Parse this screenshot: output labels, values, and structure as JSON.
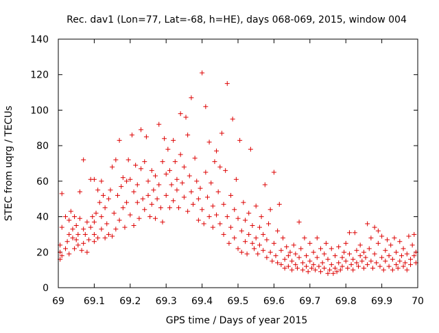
{
  "chart_data": {
    "type": "scatter",
    "title": "Rec. dav1 (Lon=77, Lat=-68, h=HE), days 068-069, 2015, window 004",
    "xlabel": "GPS time / Days of year 2015",
    "ylabel": "STEC from uqrg / TECUs",
    "xlim": [
      69,
      70
    ],
    "ylim": [
      0,
      140
    ],
    "xticks": [
      "69",
      "69.1",
      "69.2",
      "69.3",
      "69.4",
      "69.5",
      "69.6",
      "69.7",
      "69.8",
      "69.9",
      "70"
    ],
    "yticks": [
      "0",
      "20",
      "40",
      "60",
      "80",
      "100",
      "120",
      "140"
    ],
    "grid": false,
    "legend": "none",
    "marker": "+",
    "color": "#dd0000",
    "series": [
      {
        "points": [
          [
            69.005,
            16
          ],
          [
            69.005,
            20
          ],
          [
            69.005,
            24
          ],
          [
            69.01,
            18
          ],
          [
            69.01,
            53
          ],
          [
            69.01,
            34
          ],
          [
            69.02,
            40
          ],
          [
            69.02,
            22
          ],
          [
            69.025,
            26
          ],
          [
            69.03,
            19
          ],
          [
            69.03,
            30
          ],
          [
            69.03,
            38
          ],
          [
            69.035,
            43
          ],
          [
            69.04,
            28
          ],
          [
            69.04,
            33
          ],
          [
            69.045,
            22
          ],
          [
            69.045,
            40
          ],
          [
            69.05,
            27
          ],
          [
            69.05,
            35
          ],
          [
            69.055,
            24
          ],
          [
            69.055,
            30
          ],
          [
            69.06,
            39
          ],
          [
            69.06,
            54
          ],
          [
            69.065,
            21
          ],
          [
            69.07,
            25
          ],
          [
            69.07,
            33
          ],
          [
            69.07,
            72
          ],
          [
            69.075,
            30
          ],
          [
            69.08,
            20
          ],
          [
            69.08,
            37
          ],
          [
            69.085,
            27
          ],
          [
            69.09,
            34
          ],
          [
            69.09,
            61
          ],
          [
            69.095,
            40
          ],
          [
            69.1,
            26
          ],
          [
            69.1,
            30
          ],
          [
            69.1,
            37
          ],
          [
            69.1,
            61
          ],
          [
            69.105,
            42
          ],
          [
            69.11,
            28
          ],
          [
            69.11,
            55
          ],
          [
            69.115,
            48
          ],
          [
            69.12,
            33
          ],
          [
            69.12,
            40
          ],
          [
            69.12,
            60
          ],
          [
            69.125,
            52
          ],
          [
            69.13,
            28
          ],
          [
            69.13,
            45
          ],
          [
            69.135,
            36
          ],
          [
            69.14,
            50
          ],
          [
            69.14,
            30
          ],
          [
            69.145,
            55
          ],
          [
            69.15,
            29
          ],
          [
            69.15,
            68
          ],
          [
            69.155,
            42
          ],
          [
            69.16,
            33
          ],
          [
            69.16,
            72
          ],
          [
            69.165,
            52
          ],
          [
            69.17,
            38
          ],
          [
            69.17,
            83
          ],
          [
            69.175,
            57
          ],
          [
            69.18,
            45
          ],
          [
            69.18,
            62
          ],
          [
            69.185,
            34
          ],
          [
            69.19,
            60
          ],
          [
            69.19,
            48
          ],
          [
            69.195,
            72
          ],
          [
            69.2,
            61
          ],
          [
            69.2,
            41
          ],
          [
            69.205,
            86
          ],
          [
            69.21,
            54
          ],
          [
            69.21,
            35
          ],
          [
            69.215,
            69
          ],
          [
            69.22,
            48
          ],
          [
            69.22,
            58
          ],
          [
            69.225,
            39
          ],
          [
            69.23,
            89
          ],
          [
            69.23,
            67
          ],
          [
            69.235,
            50
          ],
          [
            69.24,
            71
          ],
          [
            69.24,
            44
          ],
          [
            69.245,
            85
          ],
          [
            69.25,
            60
          ],
          [
            69.25,
            52
          ],
          [
            69.255,
            40
          ],
          [
            69.26,
            66
          ],
          [
            69.26,
            47
          ],
          [
            69.265,
            55
          ],
          [
            69.27,
            63
          ],
          [
            69.27,
            39
          ],
          [
            69.275,
            50
          ],
          [
            69.28,
            92
          ],
          [
            69.28,
            58
          ],
          [
            69.285,
            45
          ],
          [
            69.29,
            71
          ],
          [
            69.29,
            37
          ],
          [
            69.295,
            84
          ],
          [
            69.3,
            64
          ],
          [
            69.3,
            52
          ],
          [
            69.305,
            78
          ],
          [
            69.31,
            45
          ],
          [
            69.31,
            66
          ],
          [
            69.315,
            58
          ],
          [
            69.32,
            83
          ],
          [
            69.32,
            49
          ],
          [
            69.325,
            71
          ],
          [
            69.33,
            55
          ],
          [
            69.33,
            61
          ],
          [
            69.335,
            45
          ],
          [
            69.34,
            75
          ],
          [
            69.34,
            98
          ],
          [
            69.345,
            59
          ],
          [
            69.35,
            51
          ],
          [
            69.35,
            68
          ],
          [
            69.355,
            96
          ],
          [
            69.36,
            43
          ],
          [
            69.36,
            86
          ],
          [
            69.365,
            63
          ],
          [
            69.37,
            54
          ],
          [
            69.37,
            107
          ],
          [
            69.375,
            47
          ],
          [
            69.38,
            73
          ],
          [
            69.385,
            60
          ],
          [
            69.39,
            50
          ],
          [
            69.39,
            38
          ],
          [
            69.395,
            56
          ],
          [
            69.4,
            121
          ],
          [
            69.4,
            44
          ],
          [
            69.405,
            36
          ],
          [
            69.41,
            65
          ],
          [
            69.41,
            102
          ],
          [
            69.415,
            51
          ],
          [
            69.42,
            40
          ],
          [
            69.42,
            82
          ],
          [
            69.425,
            59
          ],
          [
            69.43,
            46
          ],
          [
            69.43,
            34
          ],
          [
            69.435,
            71
          ],
          [
            69.44,
            77
          ],
          [
            69.44,
            41
          ],
          [
            69.445,
            54
          ],
          [
            69.45,
            36
          ],
          [
            69.45,
            68
          ],
          [
            69.455,
            87
          ],
          [
            69.46,
            47
          ],
          [
            69.46,
            30
          ],
          [
            69.465,
            66
          ],
          [
            69.47,
            115
          ],
          [
            69.47,
            40
          ],
          [
            69.475,
            25
          ],
          [
            69.48,
            52
          ],
          [
            69.48,
            34
          ],
          [
            69.485,
            95
          ],
          [
            69.49,
            28
          ],
          [
            69.49,
            44
          ],
          [
            69.495,
            61
          ],
          [
            69.5,
            22
          ],
          [
            69.5,
            39
          ],
          [
            69.505,
            83
          ],
          [
            69.51,
            32
          ],
          [
            69.51,
            20
          ],
          [
            69.515,
            48
          ],
          [
            69.52,
            26
          ],
          [
            69.52,
            38
          ],
          [
            69.525,
            19
          ],
          [
            69.53,
            42
          ],
          [
            69.53,
            30
          ],
          [
            69.535,
            78
          ],
          [
            69.54,
            25
          ],
          [
            69.54,
            35
          ],
          [
            69.545,
            22
          ],
          [
            69.55,
            46
          ],
          [
            69.55,
            28
          ],
          [
            69.555,
            19
          ],
          [
            69.56,
            34
          ],
          [
            69.56,
            24
          ],
          [
            69.565,
            40
          ],
          [
            69.57,
            21
          ],
          [
            69.57,
            30
          ],
          [
            69.575,
            58
          ],
          [
            69.58,
            17
          ],
          [
            69.58,
            27
          ],
          [
            69.585,
            36
          ],
          [
            69.59,
            20
          ],
          [
            69.59,
            44
          ],
          [
            69.595,
            15
          ],
          [
            69.6,
            25
          ],
          [
            69.6,
            65
          ],
          [
            69.605,
            18
          ],
          [
            69.61,
            32
          ],
          [
            69.61,
            14
          ],
          [
            69.615,
            47
          ],
          [
            69.62,
            21
          ],
          [
            69.62,
            13
          ],
          [
            69.625,
            28
          ],
          [
            69.63,
            16
          ],
          [
            69.63,
            11
          ],
          [
            69.635,
            23
          ],
          [
            69.64,
            18
          ],
          [
            69.64,
            12
          ],
          [
            69.645,
            20
          ],
          [
            69.65,
            10
          ],
          [
            69.65,
            15
          ],
          [
            69.655,
            24
          ],
          [
            69.66,
            13
          ],
          [
            69.66,
            19
          ],
          [
            69.665,
            11
          ],
          [
            69.67,
            17
          ],
          [
            69.67,
            37
          ],
          [
            69.675,
            22
          ],
          [
            69.68,
            10
          ],
          [
            69.68,
            14
          ],
          [
            69.685,
            28
          ],
          [
            69.69,
            12
          ],
          [
            69.69,
            18
          ],
          [
            69.695,
            9
          ],
          [
            69.7,
            15
          ],
          [
            69.7,
            25
          ],
          [
            69.705,
            11
          ],
          [
            69.71,
            20
          ],
          [
            69.71,
            13
          ],
          [
            69.715,
            10
          ],
          [
            69.72,
            17
          ],
          [
            69.72,
            28
          ],
          [
            69.725,
            12
          ],
          [
            69.73,
            9
          ],
          [
            69.73,
            22
          ],
          [
            69.735,
            14
          ],
          [
            69.74,
            19
          ],
          [
            69.74,
            11
          ],
          [
            69.745,
            25
          ],
          [
            69.75,
            8
          ],
          [
            69.75,
            16
          ],
          [
            69.755,
            10
          ],
          [
            69.76,
            22
          ],
          [
            69.76,
            13
          ],
          [
            69.765,
            8
          ],
          [
            69.77,
            18
          ],
          [
            69.77,
            11
          ],
          [
            69.775,
            9
          ],
          [
            69.78,
            23
          ],
          [
            69.78,
            14
          ],
          [
            69.785,
            10
          ],
          [
            69.79,
            17
          ],
          [
            69.79,
            12
          ],
          [
            69.795,
            20
          ],
          [
            69.8,
            15
          ],
          [
            69.8,
            25
          ],
          [
            69.805,
            11
          ],
          [
            69.81,
            19
          ],
          [
            69.81,
            31
          ],
          [
            69.815,
            13
          ],
          [
            69.82,
            16
          ],
          [
            69.82,
            10
          ],
          [
            69.825,
            31
          ],
          [
            69.83,
            21
          ],
          [
            69.83,
            14
          ],
          [
            69.835,
            12
          ],
          [
            69.84,
            18
          ],
          [
            69.84,
            24
          ],
          [
            69.845,
            15
          ],
          [
            69.85,
            11
          ],
          [
            69.85,
            20
          ],
          [
            69.855,
            17
          ],
          [
            69.86,
            36
          ],
          [
            69.86,
            13
          ],
          [
            69.865,
            22
          ],
          [
            69.87,
            15
          ],
          [
            69.87,
            28
          ],
          [
            69.875,
            11
          ],
          [
            69.88,
            34
          ],
          [
            69.88,
            19
          ],
          [
            69.885,
            14
          ],
          [
            69.89,
            25
          ],
          [
            69.89,
            32
          ],
          [
            69.895,
            12
          ],
          [
            69.9,
            17
          ],
          [
            69.9,
            29
          ],
          [
            69.905,
            10
          ],
          [
            69.91,
            21
          ],
          [
            69.91,
            15
          ],
          [
            69.915,
            27
          ],
          [
            69.92,
            12
          ],
          [
            69.92,
            18
          ],
          [
            69.925,
            24
          ],
          [
            69.93,
            10
          ],
          [
            69.93,
            16
          ],
          [
            69.935,
            28
          ],
          [
            69.94,
            13
          ],
          [
            69.94,
            20
          ],
          [
            69.945,
            11
          ],
          [
            69.95,
            15
          ],
          [
            69.95,
            26
          ],
          [
            69.955,
            18
          ],
          [
            69.96,
            12
          ],
          [
            69.96,
            22
          ],
          [
            69.965,
            14
          ],
          [
            69.97,
            10
          ],
          [
            69.97,
            19
          ],
          [
            69.975,
            29
          ],
          [
            69.98,
            16
          ],
          [
            69.98,
            13
          ],
          [
            69.985,
            24
          ],
          [
            69.99,
            18
          ],
          [
            69.99,
            30
          ],
          [
            69.995,
            14
          ],
          [
            69.995,
            20
          ]
        ]
      }
    ]
  }
}
